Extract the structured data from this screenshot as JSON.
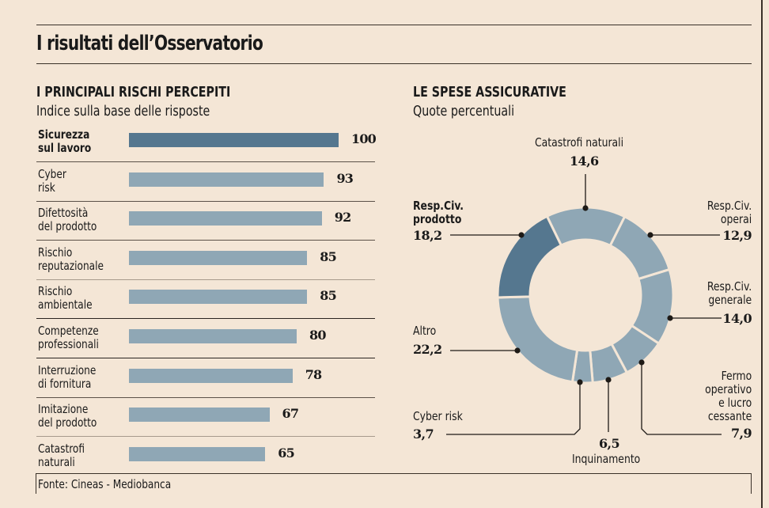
{
  "header": {
    "title": "I risultati dell’Osservatorio"
  },
  "left_panel": {
    "title": "I PRINCIPALI RISCHI PERCEPITI",
    "subtitle": "Indice sulla base delle risposte"
  },
  "right_panel": {
    "title": "LE SPESE ASSICURATIVE",
    "subtitle": "Quote percentuali"
  },
  "footer": {
    "source": "Fonte: Cineas - Mediobanca"
  },
  "colors": {
    "highlight": "#55778f",
    "normal": "#8fa7b5",
    "background": "#f4e6d6"
  },
  "chart_data": [
    {
      "type": "bar",
      "orientation": "horizontal",
      "title": "I PRINCIPALI RISCHI PERCEPITI",
      "subtitle": "Indice sulla base delle risposte",
      "categories": [
        "Sicurezza\nsul lavoro",
        "Cyber\nrisk",
        "Difettosità\ndel prodotto",
        "Rischio\nreputazionale",
        "Rischio\nambientale",
        "Competenze\nprofessionali",
        "Interruzione\ndi fornitura",
        "Imitazione\ndel prodotto",
        "Catastrofi\nnaturali"
      ],
      "values": [
        100,
        93,
        92,
        85,
        85,
        80,
        78,
        67,
        65
      ],
      "value_labels": [
        "100",
        "93",
        "92",
        "85",
        "85",
        "80",
        "78",
        "67",
        "65"
      ],
      "highlighted_index": 0,
      "xlim": [
        0,
        100
      ],
      "grid": false
    },
    {
      "type": "pie",
      "variant": "donut",
      "title": "LE SPESE ASSICURATIVE",
      "subtitle": "Quote percentuali",
      "slices": [
        {
          "label": "Catastrofi naturali",
          "value": 14.6,
          "value_label": "14,6"
        },
        {
          "label": "Resp.Civ. operai",
          "value": 12.9,
          "value_label": "12,9"
        },
        {
          "label": "Resp.Civ. generale",
          "value": 14.0,
          "value_label": "14,0"
        },
        {
          "label": "Fermo operativo e lucro cessante",
          "value": 7.9,
          "value_label": "7,9"
        },
        {
          "label": "Inquinamento",
          "value": 6.5,
          "value_label": "6,5"
        },
        {
          "label": "Cyber risk",
          "value": 3.7,
          "value_label": "3,7"
        },
        {
          "label": "Altro",
          "value": 22.2,
          "value_label": "22,2"
        },
        {
          "label": "Resp.Civ. prodotto",
          "value": 18.2,
          "value_label": "18,2",
          "highlighted": true
        }
      ],
      "labels_display": {
        "catastrofi": "Catastrofi naturali",
        "rc_operai": "Resp.Civ.\noperai",
        "rc_generale": "Resp.Civ.\ngenerale",
        "fermo": "Fermo\noperativo\ne lucro\ncessante",
        "inquinamento": "Inquinamento",
        "cyber": "Cyber risk",
        "altro": "Altro",
        "rc_prodotto": "Resp.Civ.\nprodotto"
      }
    }
  ]
}
